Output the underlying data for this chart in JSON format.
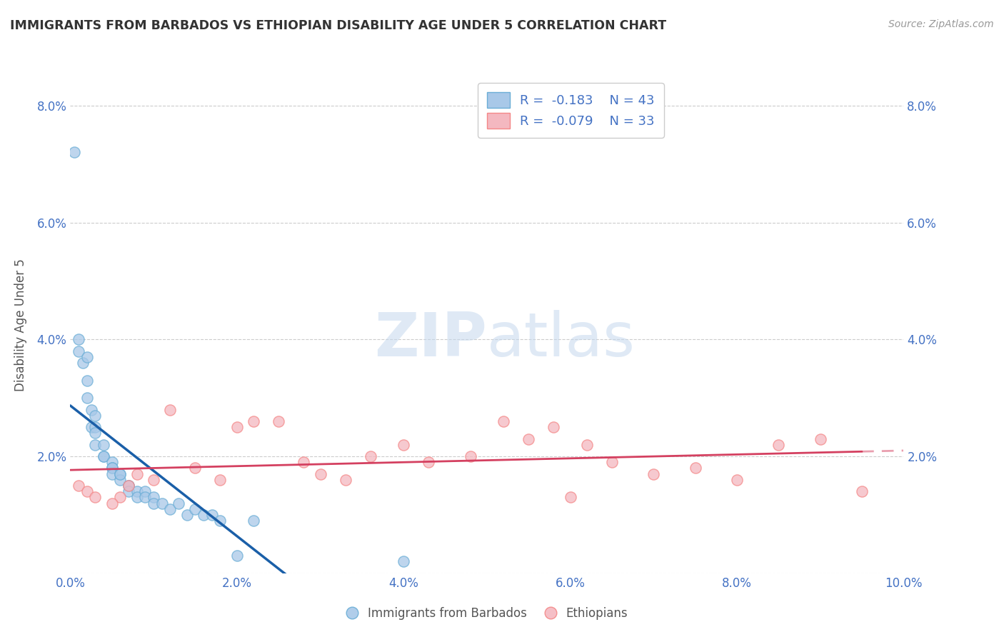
{
  "title": "IMMIGRANTS FROM BARBADOS VS ETHIOPIAN DISABILITY AGE UNDER 5 CORRELATION CHART",
  "source": "Source: ZipAtlas.com",
  "ylabel": "Disability Age Under 5",
  "xlim": [
    0.0,
    0.1
  ],
  "ylim": [
    0.0,
    0.085
  ],
  "xticks": [
    0.0,
    0.02,
    0.04,
    0.06,
    0.08,
    0.1
  ],
  "yticks": [
    0.0,
    0.02,
    0.04,
    0.06,
    0.08
  ],
  "legend1_r": "-0.183",
  "legend1_n": "43",
  "legend2_r": "-0.079",
  "legend2_n": "33",
  "blue_color": "#a8c8e8",
  "pink_color": "#f4b8c0",
  "blue_edge_color": "#6baed6",
  "pink_edge_color": "#f48888",
  "blue_line_color": "#1a5fa8",
  "pink_line_color": "#d44060",
  "blue_scatter_x": [
    0.0005,
    0.001,
    0.001,
    0.0015,
    0.002,
    0.002,
    0.002,
    0.0025,
    0.0025,
    0.003,
    0.003,
    0.003,
    0.003,
    0.004,
    0.004,
    0.004,
    0.005,
    0.005,
    0.005,
    0.005,
    0.006,
    0.006,
    0.006,
    0.007,
    0.007,
    0.007,
    0.008,
    0.008,
    0.009,
    0.009,
    0.01,
    0.01,
    0.011,
    0.012,
    0.013,
    0.014,
    0.015,
    0.016,
    0.017,
    0.018,
    0.02,
    0.022,
    0.04
  ],
  "blue_scatter_y": [
    0.072,
    0.038,
    0.04,
    0.036,
    0.037,
    0.033,
    0.03,
    0.025,
    0.028,
    0.027,
    0.025,
    0.024,
    0.022,
    0.022,
    0.02,
    0.02,
    0.019,
    0.018,
    0.018,
    0.017,
    0.017,
    0.016,
    0.017,
    0.015,
    0.015,
    0.014,
    0.014,
    0.013,
    0.014,
    0.013,
    0.013,
    0.012,
    0.012,
    0.011,
    0.012,
    0.01,
    0.011,
    0.01,
    0.01,
    0.009,
    0.003,
    0.009,
    0.002
  ],
  "pink_scatter_x": [
    0.001,
    0.002,
    0.003,
    0.006,
    0.007,
    0.008,
    0.01,
    0.012,
    0.015,
    0.018,
    0.02,
    0.025,
    0.028,
    0.03,
    0.033,
    0.036,
    0.04,
    0.043,
    0.048,
    0.052,
    0.055,
    0.058,
    0.062,
    0.065,
    0.07,
    0.075,
    0.08,
    0.085,
    0.09,
    0.095,
    0.005,
    0.022,
    0.06
  ],
  "pink_scatter_y": [
    0.015,
    0.014,
    0.013,
    0.013,
    0.015,
    0.017,
    0.016,
    0.028,
    0.018,
    0.016,
    0.025,
    0.026,
    0.019,
    0.017,
    0.016,
    0.02,
    0.022,
    0.019,
    0.02,
    0.026,
    0.023,
    0.025,
    0.022,
    0.019,
    0.017,
    0.018,
    0.016,
    0.022,
    0.023,
    0.014,
    0.012,
    0.026,
    0.013
  ],
  "background_color": "#ffffff",
  "grid_color": "#cccccc"
}
